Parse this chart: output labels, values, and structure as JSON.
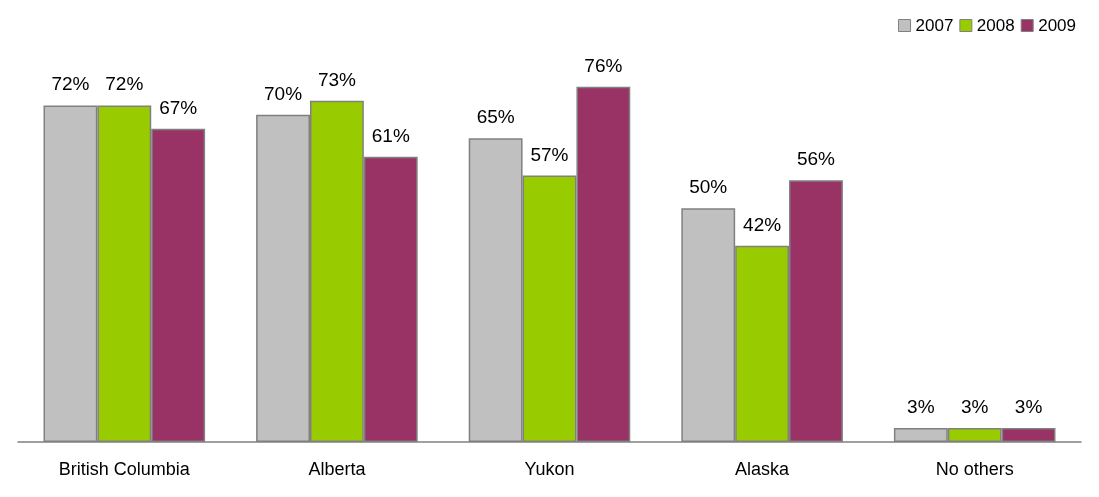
{
  "chart_data": {
    "type": "bar",
    "categories": [
      "British Columbia",
      "Alberta",
      "Yukon",
      "Alaska",
      "No others"
    ],
    "series": [
      {
        "name": "2007",
        "color": "#c0c0c0",
        "values": [
          72,
          70,
          65,
          50,
          3
        ],
        "value_labels": [
          "72%",
          "70%",
          "65%",
          "50%",
          "3%"
        ]
      },
      {
        "name": "2008",
        "color": "#99cc00",
        "values": [
          72,
          73,
          57,
          42,
          3
        ],
        "value_labels": [
          "72%",
          "73%",
          "57%",
          "42%",
          "3%"
        ]
      },
      {
        "name": "2009",
        "color": "#993366",
        "values": [
          67,
          61,
          76,
          56,
          3
        ],
        "value_labels": [
          "67%",
          "61%",
          "76%",
          "56%",
          "3%"
        ]
      }
    ],
    "legend": "top right",
    "grid": false
  }
}
